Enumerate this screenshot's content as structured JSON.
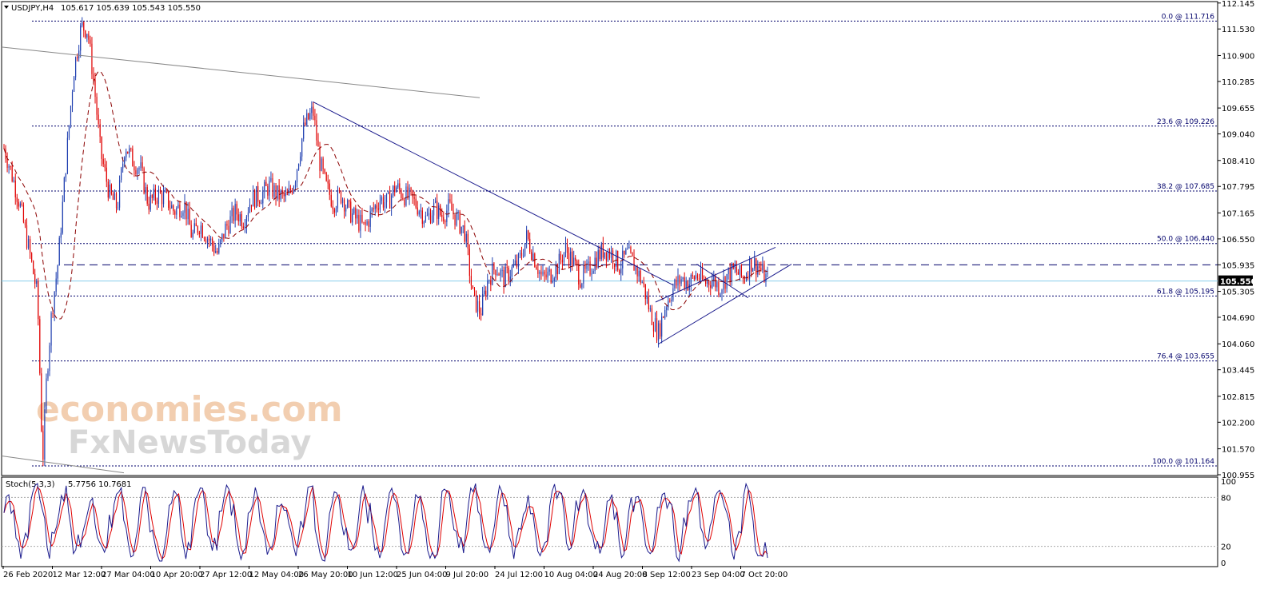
{
  "header": {
    "symbol": "USDJPY,H4",
    "ohlc": "105.617 105.639 105.543 105.550",
    "stoch_label": "Stoch(5,3,3)",
    "stoch_values": "5.7756 10.7681"
  },
  "watermark": {
    "line1": "economies.com",
    "line2": "FxNewsToday"
  },
  "colors": {
    "bull": "#1f3fb0",
    "bear": "#e00000",
    "ma": "#8b0000",
    "trend": "#1a1a8c",
    "fib": "#00006b",
    "stoch_main": "#1a1a8c",
    "stoch_signal": "#e00000",
    "current_price_line": "#87ceeb"
  },
  "chart_data": [
    {
      "type": "candlestick",
      "symbol": "USDJPY",
      "timeframe": "H4",
      "current_price": 105.55,
      "ylim": [
        100.955,
        112.16
      ],
      "y_ticks": [
        112.145,
        111.53,
        110.9,
        110.285,
        109.655,
        109.04,
        108.41,
        107.795,
        107.165,
        106.55,
        105.935,
        105.305,
        104.69,
        104.06,
        103.445,
        102.815,
        102.2,
        101.57,
        100.955
      ],
      "x_tick_labels": [
        "26 Feb 2020",
        "12 Mar 12:00",
        "27 Mar 04:00",
        "10 Apr 20:00",
        "27 Apr 12:00",
        "12 May 04:00",
        "26 May 20:00",
        "10 Jun 12:00",
        "25 Jun 04:00",
        "9 Jul 20:00",
        "24 Jul 12:00",
        "10 Aug 04:00",
        "24 Aug 20:00",
        "8 Sep 12:00",
        "23 Sep 04:00",
        "7 Oct 20:00"
      ],
      "price_path": [
        [
          0,
          108.7
        ],
        [
          0.5,
          108.2
        ],
        [
          1.2,
          107.4
        ],
        [
          2.0,
          106.2
        ],
        [
          2.6,
          105.2
        ],
        [
          3.0,
          101.2
        ],
        [
          3.3,
          103.2
        ],
        [
          3.7,
          104.8
        ],
        [
          4.2,
          106.0
        ],
        [
          4.8,
          108.3
        ],
        [
          5.4,
          110.5
        ],
        [
          6.0,
          111.6
        ],
        [
          6.5,
          111.5
        ],
        [
          7.0,
          110.2
        ],
        [
          7.5,
          108.6
        ],
        [
          8.2,
          107.6
        ],
        [
          8.8,
          107.3
        ],
        [
          9.4,
          108.8
        ],
        [
          10.0,
          108.4
        ],
        [
          10.6,
          108.2
        ],
        [
          11.2,
          107.4
        ],
        [
          12.0,
          107.6
        ],
        [
          12.6,
          107.5
        ],
        [
          13.2,
          107.2
        ],
        [
          14.0,
          107.4
        ],
        [
          14.6,
          106.6
        ],
        [
          15.2,
          106.9
        ],
        [
          16.0,
          106.5
        ],
        [
          16.6,
          106.2
        ],
        [
          17.2,
          106.8
        ],
        [
          18.0,
          107.2
        ],
        [
          18.6,
          107.0
        ],
        [
          19.2,
          107.5
        ],
        [
          20.0,
          107.6
        ],
        [
          20.6,
          107.8
        ],
        [
          21.2,
          107.6
        ],
        [
          22.0,
          107.5
        ],
        [
          22.6,
          108.0
        ],
        [
          23.3,
          109.2
        ],
        [
          24.0,
          109.6
        ],
        [
          24.5,
          108.4
        ],
        [
          25.0,
          107.8
        ],
        [
          25.6,
          107.4
        ],
        [
          26.2,
          107.6
        ],
        [
          26.8,
          107.2
        ],
        [
          27.4,
          107.0
        ],
        [
          28.0,
          106.8
        ],
        [
          28.6,
          107.2
        ],
        [
          29.2,
          107.5
        ],
        [
          29.8,
          107.4
        ],
        [
          30.4,
          107.8
        ],
        [
          31.0,
          107.6
        ],
        [
          31.6,
          107.5
        ],
        [
          32.2,
          107.3
        ],
        [
          32.8,
          107.0
        ],
        [
          33.4,
          107.3
        ],
        [
          34.0,
          107.1
        ],
        [
          34.6,
          107.3
        ],
        [
          35.2,
          107.0
        ],
        [
          35.8,
          106.7
        ],
        [
          36.4,
          105.2
        ],
        [
          37.0,
          104.8
        ],
        [
          37.6,
          105.6
        ],
        [
          38.2,
          105.9
        ],
        [
          38.8,
          105.6
        ],
        [
          39.4,
          105.8
        ],
        [
          40.0,
          106.0
        ],
        [
          40.6,
          106.6
        ],
        [
          41.2,
          106.1
        ],
        [
          41.8,
          105.6
        ],
        [
          42.4,
          105.7
        ],
        [
          43.0,
          105.9
        ],
        [
          43.6,
          106.3
        ],
        [
          44.2,
          106.0
        ],
        [
          44.8,
          105.6
        ],
        [
          45.4,
          105.8
        ],
        [
          46.0,
          106.1
        ],
        [
          46.6,
          106.3
        ],
        [
          47.2,
          106.2
        ],
        [
          47.8,
          105.9
        ],
        [
          48.4,
          106.2
        ],
        [
          49.0,
          105.9
        ],
        [
          49.6,
          105.5
        ],
        [
          50.2,
          104.8
        ],
        [
          50.8,
          104.3
        ],
        [
          51.4,
          105.0
        ],
        [
          52.0,
          105.4
        ],
        [
          52.6,
          105.6
        ],
        [
          53.2,
          105.5
        ],
        [
          53.8,
          105.7
        ],
        [
          54.4,
          105.5
        ],
        [
          55.0,
          105.6
        ],
        [
          55.6,
          105.4
        ],
        [
          56.2,
          105.7
        ],
        [
          56.8,
          105.8
        ],
        [
          57.4,
          105.6
        ],
        [
          58.0,
          106.0
        ],
        [
          58.6,
          105.9
        ],
        [
          59.3,
          105.55
        ]
      ],
      "moving_average": "dashed dark red",
      "trendlines": "descending line from May high to Sep; rising channel from Sep low",
      "horizontal_levels": [
        105.935,
        105.55
      ],
      "fibonacci": [
        {
          "label": "0.0 @ 111.716",
          "level": 111.716
        },
        {
          "label": "23.6 @ 109.226",
          "level": 109.226
        },
        {
          "label": "38.2 @ 107.685",
          "level": 107.685
        },
        {
          "label": "50.0 @ 106.440",
          "level": 106.44
        },
        {
          "label": "61.8 @ 105.195",
          "level": 105.195
        },
        {
          "label": "76.4 @ 103.655",
          "level": 103.655
        },
        {
          "label": "100.0 @ 101.164",
          "level": 101.164
        }
      ]
    },
    {
      "type": "line",
      "indicator": "Stochastic Oscillator",
      "params": "5,3,3",
      "main_last": 5.7756,
      "signal_last": 10.7681,
      "ylim": [
        0,
        100
      ],
      "y_ticks": [
        100,
        80,
        20,
        0
      ],
      "levels": [
        80,
        20
      ]
    }
  ]
}
